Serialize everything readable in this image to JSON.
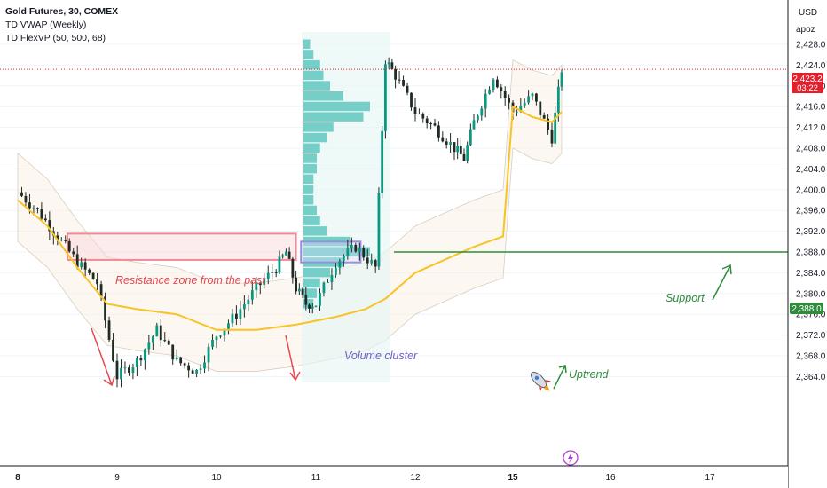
{
  "header": {
    "symbol_line": "Gold Futures, 30, COMEX",
    "indicator_1": "TD VWAP (Weekly)",
    "indicator_2": "TD FlexVP (50, 500, 68)"
  },
  "price_scale": {
    "currency": "USD",
    "mode": "apoz",
    "last_price": "2,423.2",
    "countdown": "03:22",
    "support_price": "2,388.0"
  },
  "colors": {
    "up": "#089981",
    "down": "#f23645",
    "candle": "#1f2b23",
    "vwap": "#f7c325",
    "volume_profile": "#5fc8c0",
    "resistance": "#f28a95",
    "volume_cluster": "#9b8ee0",
    "support": "#2e8b3a",
    "last_price_badge": "#e0212d"
  },
  "annotations": {
    "resistance": "Resistance zone from the past",
    "volume_cluster": "Volume cluster",
    "support": "Support",
    "uptrend": "Uptrend",
    "rocket_icon": "rocket-icon",
    "lightning_icon": "lightning-icon"
  },
  "chart_data": {
    "type": "candlestick",
    "title": "Gold Futures, 30, COMEX",
    "xlabel": "",
    "ylabel": "",
    "x_ticks": [
      "8",
      "9",
      "10",
      "11",
      "12",
      "15",
      "16",
      "17"
    ],
    "y_ticks": [
      2364.0,
      2368.0,
      2372.0,
      2376.0,
      2380.0,
      2384.0,
      2388.0,
      2392.0,
      2396.0,
      2400.0,
      2404.0,
      2408.0,
      2412.0,
      2416.0,
      2420.0,
      2424.0,
      2428.0
    ],
    "ylim": [
      2363.0,
      2431.0
    ],
    "last_price": 2423.2,
    "support_level": 2388.0,
    "resistance_zone": {
      "from_day": 8.5,
      "to_day": 10.8,
      "low": 2387.5,
      "high": 2390.5
    },
    "volume_cluster_zone": {
      "from_day": 10.85,
      "to_day": 11.45,
      "low": 2386.0,
      "high": 2390.0
    },
    "series": [
      {
        "name": "price",
        "x": [
          8.0,
          8.2,
          8.4,
          8.6,
          8.8,
          9.0,
          9.2,
          9.4,
          9.6,
          9.8,
          10.0,
          10.2,
          10.4,
          10.6,
          10.7,
          10.8,
          10.9,
          11.0,
          11.2,
          11.4,
          11.6,
          11.7,
          11.8,
          12.0,
          12.2,
          12.4,
          12.5,
          12.6,
          12.8,
          15.0,
          15.2,
          15.4,
          15.5
        ],
        "y": [
          2399.5,
          2396.0,
          2391.0,
          2386.0,
          2382.0,
          2364.0,
          2367.0,
          2373.0,
          2367.0,
          2365.0,
          2372.0,
          2376.0,
          2381.0,
          2385.0,
          2388.0,
          2381.0,
          2378.0,
          2378.0,
          2386.0,
          2389.0,
          2385.0,
          2425.0,
          2422.0,
          2415.0,
          2412.0,
          2408.0,
          2406.0,
          2413.0,
          2422.0,
          2415.0,
          2418.0,
          2410.0,
          2423.2
        ]
      },
      {
        "name": "TD VWAP (Weekly)",
        "x": [
          8.0,
          8.3,
          8.6,
          8.9,
          9.2,
          9.6,
          10.0,
          10.4,
          10.8,
          11.2,
          11.5,
          11.7,
          12.0,
          12.3,
          12.6,
          12.9,
          15.0,
          15.2,
          15.4,
          15.5
        ],
        "y": [
          2398.0,
          2393.0,
          2385.0,
          2378.0,
          2377.0,
          2376.0,
          2373.0,
          2373.0,
          2374.0,
          2375.5,
          2377.0,
          2379.0,
          2384.0,
          2386.5,
          2389.0,
          2391.0,
          2416.0,
          2414.0,
          2413.0,
          2415.0
        ]
      }
    ],
    "volume_profile": {
      "price_levels": [
        2428,
        2426,
        2424,
        2422,
        2420,
        2418,
        2416,
        2414,
        2412,
        2410,
        2408,
        2406,
        2404,
        2402,
        2400,
        2398,
        2396,
        2394,
        2392,
        2390,
        2388,
        2386,
        2384,
        2382,
        2380,
        2378
      ],
      "volumes": [
        2,
        3,
        5,
        6,
        8,
        12,
        20,
        18,
        9,
        7,
        5,
        4,
        4,
        3,
        3,
        3,
        4,
        5,
        7,
        14,
        20,
        12,
        8,
        5,
        4,
        3
      ]
    }
  }
}
